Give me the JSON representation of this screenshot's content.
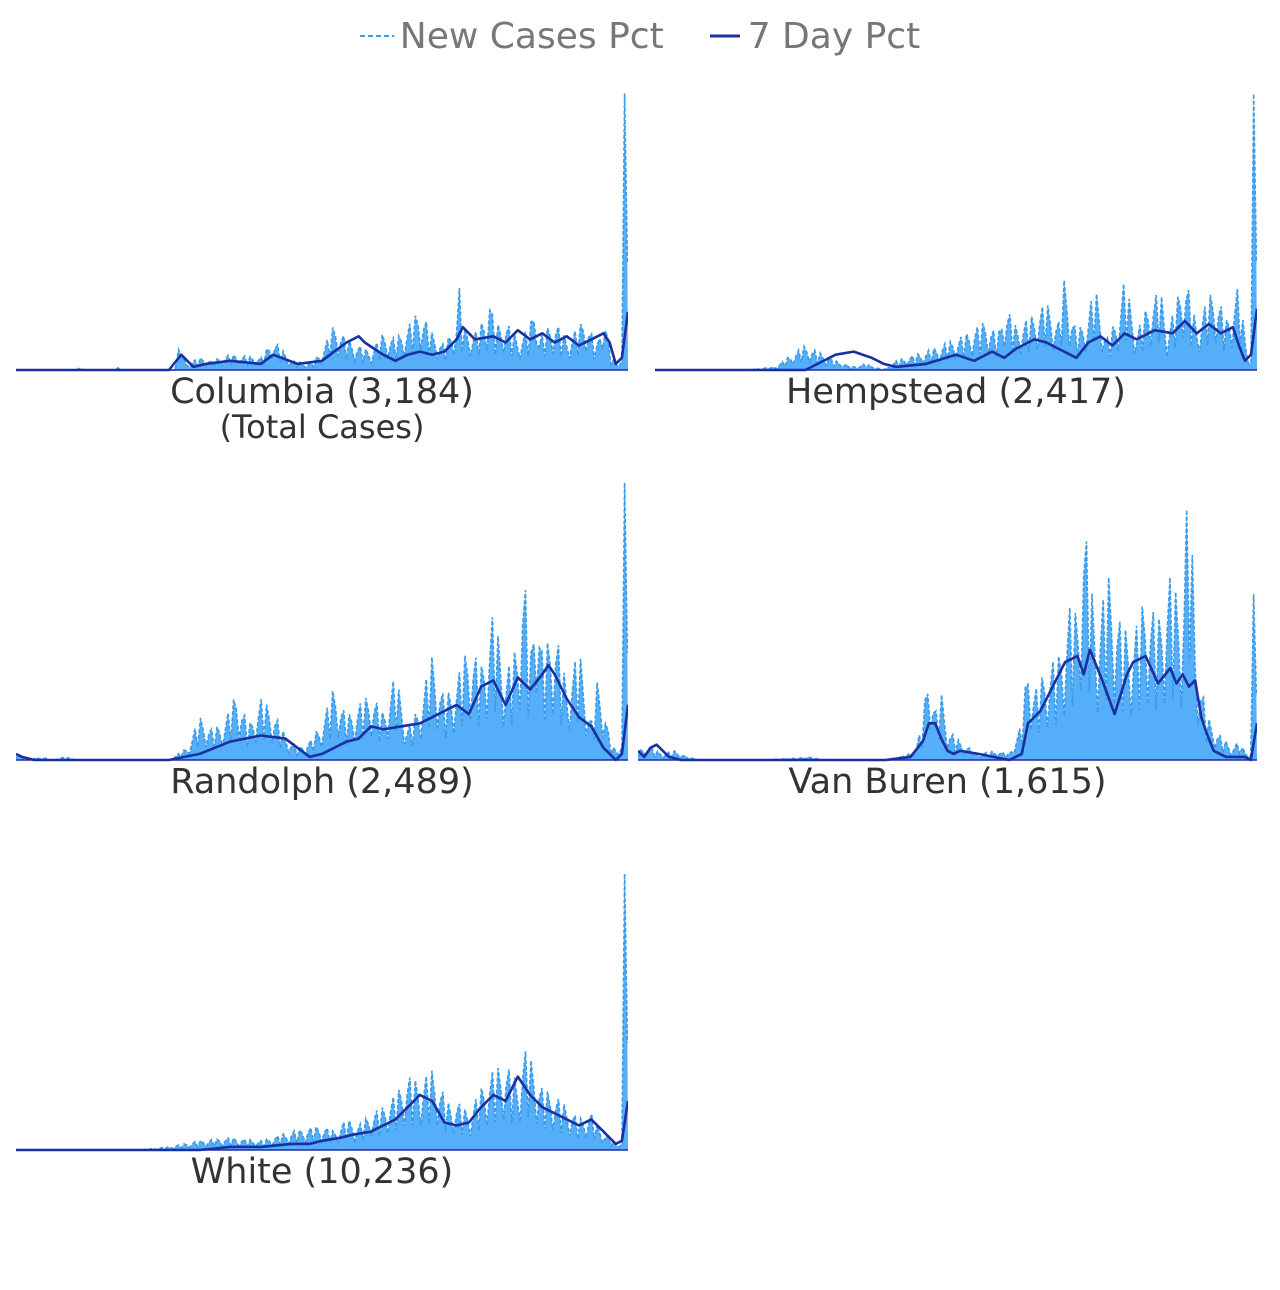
{
  "legend": {
    "new_cases_label": "New Cases Pct",
    "seven_day_label": "7 Day Pct"
  },
  "colors": {
    "new_cases": "#3A9BE8",
    "fill": "#55AEF8",
    "seven_day": "#1A2FA0",
    "text": "#333333",
    "legend_text": "#777777"
  },
  "chart_data": [
    {
      "type": "area",
      "title": "Columbia (3,184)",
      "subtitle": "(Total Cases)",
      "x_range": [
        0,
        100
      ],
      "ylim": [
        0,
        100
      ],
      "series": [
        {
          "name": "New Cases Pct",
          "x": [
            0,
            10,
            10.5,
            11,
            16,
            16.5,
            17,
            26,
            27,
            27.5,
            28,
            30,
            32,
            35,
            40,
            42,
            45,
            48,
            50,
            52,
            54,
            56,
            58,
            60,
            62,
            64,
            66,
            68,
            70,
            72,
            72.5,
            73,
            75,
            77,
            77.5,
            78,
            80,
            82,
            84,
            85,
            85.5,
            86,
            88,
            90,
            92,
            93,
            94,
            95,
            96,
            97,
            98,
            99,
            99.5,
            100
          ],
          "values": [
            0,
            0,
            1,
            0,
            0,
            1,
            0,
            0,
            12,
            3,
            2,
            4,
            3,
            5,
            4,
            10,
            3,
            2,
            6,
            15,
            10,
            8,
            6,
            12,
            10,
            14,
            20,
            12,
            8,
            16,
            28,
            14,
            12,
            18,
            28,
            14,
            16,
            10,
            14,
            26,
            10,
            12,
            16,
            10,
            14,
            18,
            12,
            8,
            22,
            6,
            2,
            4,
            100,
            100
          ]
        },
        {
          "name": "7 Day Pct",
          "x": [
            0,
            25,
            27,
            29,
            31,
            35,
            40,
            42,
            46,
            50,
            52,
            54,
            56,
            57,
            60,
            62,
            64,
            66,
            68,
            70,
            72,
            73,
            75,
            78,
            80,
            82,
            84,
            86,
            88,
            90,
            92,
            94,
            96,
            97,
            98,
            99,
            100
          ],
          "values": [
            0,
            0,
            5,
            1,
            2,
            3,
            2,
            5,
            2,
            3,
            6,
            9,
            11,
            9,
            5,
            3,
            5,
            6,
            5,
            6,
            10,
            14,
            10,
            11,
            9,
            13,
            10,
            12,
            9,
            11,
            8,
            10,
            12,
            9,
            2,
            4,
            19
          ]
        }
      ]
    },
    {
      "type": "area",
      "title": "Hempstead (2,417)",
      "x_range": [
        0,
        100
      ],
      "ylim": [
        0,
        100
      ],
      "series": [
        {
          "name": "New Cases Pct",
          "x": [
            0,
            15,
            20,
            22,
            25,
            27,
            30,
            33,
            35,
            38,
            40,
            45,
            50,
            52,
            55,
            57,
            58,
            60,
            63,
            65,
            67,
            68,
            70,
            72,
            73,
            75,
            77,
            78,
            80,
            82,
            84,
            85,
            86,
            88,
            90,
            92,
            93,
            95,
            97,
            98,
            99,
            99.5,
            100
          ],
          "values": [
            0,
            0,
            1,
            4,
            8,
            6,
            3,
            1,
            2,
            0,
            3,
            6,
            10,
            12,
            16,
            11,
            22,
            14,
            18,
            22,
            15,
            30,
            12,
            18,
            28,
            10,
            18,
            30,
            12,
            22,
            26,
            12,
            18,
            32,
            14,
            24,
            26,
            16,
            28,
            10,
            3,
            100,
            100
          ]
        },
        {
          "name": "7 Day Pct",
          "x": [
            0,
            25,
            27,
            30,
            33,
            36,
            38,
            40,
            45,
            50,
            53,
            56,
            58,
            60,
            63,
            65,
            67,
            70,
            72,
            74,
            76,
            78,
            80,
            83,
            86,
            88,
            90,
            92,
            94,
            96,
            97,
            98,
            99,
            100
          ],
          "values": [
            0,
            0,
            2,
            5,
            6,
            4,
            2,
            1,
            2,
            5,
            3,
            6,
            4,
            7,
            10,
            9,
            7,
            4,
            9,
            11,
            8,
            12,
            10,
            13,
            12,
            16,
            12,
            15,
            12,
            14,
            8,
            3,
            5,
            20
          ]
        }
      ]
    },
    {
      "type": "area",
      "title": "Randolph (2,489)",
      "x_range": [
        0,
        100
      ],
      "ylim": [
        0,
        100
      ],
      "series": [
        {
          "name": "New Cases Pct",
          "x": [
            0,
            2,
            4,
            6,
            8,
            10,
            15,
            25,
            28,
            30,
            32,
            34,
            36,
            38,
            40,
            42,
            44,
            46,
            48,
            50,
            52,
            54,
            56,
            58,
            60,
            62,
            64,
            66,
            68,
            70,
            72,
            74,
            76,
            78,
            80,
            82,
            83,
            84,
            85,
            86,
            88,
            90,
            92,
            94,
            95,
            96,
            97,
            98,
            99,
            99.5,
            100
          ],
          "values": [
            2,
            0,
            1,
            0,
            1,
            0,
            0,
            0,
            4,
            14,
            10,
            12,
            22,
            11,
            20,
            16,
            8,
            4,
            6,
            12,
            24,
            14,
            18,
            22,
            15,
            28,
            10,
            18,
            34,
            20,
            26,
            38,
            30,
            48,
            28,
            38,
            64,
            30,
            64,
            34,
            44,
            24,
            36,
            12,
            26,
            20,
            6,
            3,
            6,
            100,
            100
          ]
        },
        {
          "name": "7 Day Pct",
          "x": [
            0,
            1,
            3,
            20,
            25,
            30,
            35,
            40,
            44,
            46,
            48,
            50,
            52,
            54,
            56,
            58,
            60,
            63,
            66,
            68,
            70,
            72,
            74,
            76,
            78,
            80,
            82,
            84,
            86,
            87,
            88,
            90,
            92,
            94,
            96,
            98,
            99,
            100
          ],
          "values": [
            2,
            1,
            0,
            0,
            0,
            2,
            6,
            8,
            7,
            4,
            1,
            2,
            4,
            6,
            7,
            11,
            10,
            11,
            12,
            14,
            16,
            18,
            15,
            24,
            26,
            18,
            27,
            23,
            28,
            31,
            28,
            20,
            14,
            11,
            4,
            0,
            2,
            18
          ]
        }
      ]
    },
    {
      "type": "area",
      "title": "Van Buren (1,615)",
      "x_range": [
        0,
        100
      ],
      "ylim": [
        0,
        100
      ],
      "series": [
        {
          "name": "New Cases Pct",
          "x": [
            0,
            2,
            4,
            6,
            8,
            10,
            20,
            28,
            30,
            40,
            44,
            45,
            46,
            47,
            48,
            49,
            50,
            52,
            55,
            58,
            60,
            62,
            63,
            64,
            66,
            68,
            70,
            71,
            72,
            74,
            76,
            78,
            80,
            82,
            84,
            86,
            88,
            89,
            90,
            91,
            92,
            94,
            96,
            97,
            98,
            99,
            99.5,
            100
          ],
          "values": [
            3,
            4,
            2,
            3,
            1,
            0,
            0,
            1,
            0,
            0,
            2,
            5,
            12,
            33,
            15,
            22,
            10,
            6,
            2,
            3,
            2,
            12,
            33,
            22,
            30,
            34,
            52,
            46,
            80,
            42,
            60,
            44,
            40,
            54,
            45,
            60,
            48,
            100,
            40,
            24,
            14,
            8,
            4,
            6,
            3,
            2,
            60,
            60
          ]
        },
        {
          "name": "7 Day Pct",
          "x": [
            0,
            1,
            2,
            3,
            5,
            7,
            8,
            20,
            40,
            44,
            46,
            47,
            48,
            49,
            50,
            51,
            52,
            55,
            60,
            62,
            63,
            65,
            67,
            69,
            71,
            72,
            73,
            75,
            77,
            79,
            80,
            82,
            84,
            86,
            87,
            88,
            89,
            90,
            91,
            92,
            93,
            95,
            97,
            98,
            99,
            100
          ],
          "values": [
            3,
            1,
            4,
            5,
            1,
            0,
            0,
            0,
            0,
            1,
            6,
            12,
            12,
            7,
            3,
            2,
            3,
            2,
            0,
            2,
            12,
            16,
            24,
            32,
            34,
            28,
            36,
            26,
            15,
            28,
            32,
            34,
            25,
            30,
            25,
            28,
            24,
            26,
            14,
            8,
            3,
            1,
            1,
            1,
            0,
            12
          ]
        }
      ]
    },
    {
      "type": "area",
      "title": "White (10,236)",
      "x_range": [
        0,
        100
      ],
      "ylim": [
        0,
        100
      ],
      "series": [
        {
          "name": "New Cases Pct",
          "x": [
            0,
            10,
            20,
            25,
            30,
            35,
            40,
            45,
            50,
            52,
            54,
            56,
            58,
            60,
            62,
            64,
            66,
            68,
            70,
            71,
            72,
            74,
            76,
            78,
            80,
            82,
            83,
            84,
            86,
            88,
            90,
            92,
            94,
            95,
            96,
            97,
            98,
            99,
            99.5,
            100
          ],
          "values": [
            0,
            0,
            0,
            1,
            3,
            4,
            3,
            6,
            8,
            6,
            10,
            8,
            12,
            14,
            18,
            24,
            22,
            26,
            18,
            14,
            16,
            12,
            20,
            26,
            28,
            22,
            33,
            30,
            20,
            18,
            14,
            10,
            12,
            8,
            6,
            4,
            2,
            3,
            100,
            100
          ]
        },
        {
          "name": "7 Day Pct",
          "x": [
            0,
            30,
            35,
            40,
            45,
            48,
            50,
            53,
            55,
            58,
            60,
            62,
            64,
            66,
            68,
            70,
            72,
            74,
            76,
            78,
            80,
            82,
            84,
            86,
            88,
            90,
            92,
            94,
            96,
            97,
            98,
            99,
            100
          ],
          "values": [
            0,
            0,
            1,
            1,
            2,
            2,
            3,
            4,
            5,
            6,
            8,
            10,
            14,
            18,
            16,
            9,
            8,
            9,
            14,
            18,
            16,
            24,
            18,
            14,
            12,
            10,
            8,
            10,
            6,
            4,
            2,
            3,
            16
          ]
        }
      ]
    }
  ]
}
